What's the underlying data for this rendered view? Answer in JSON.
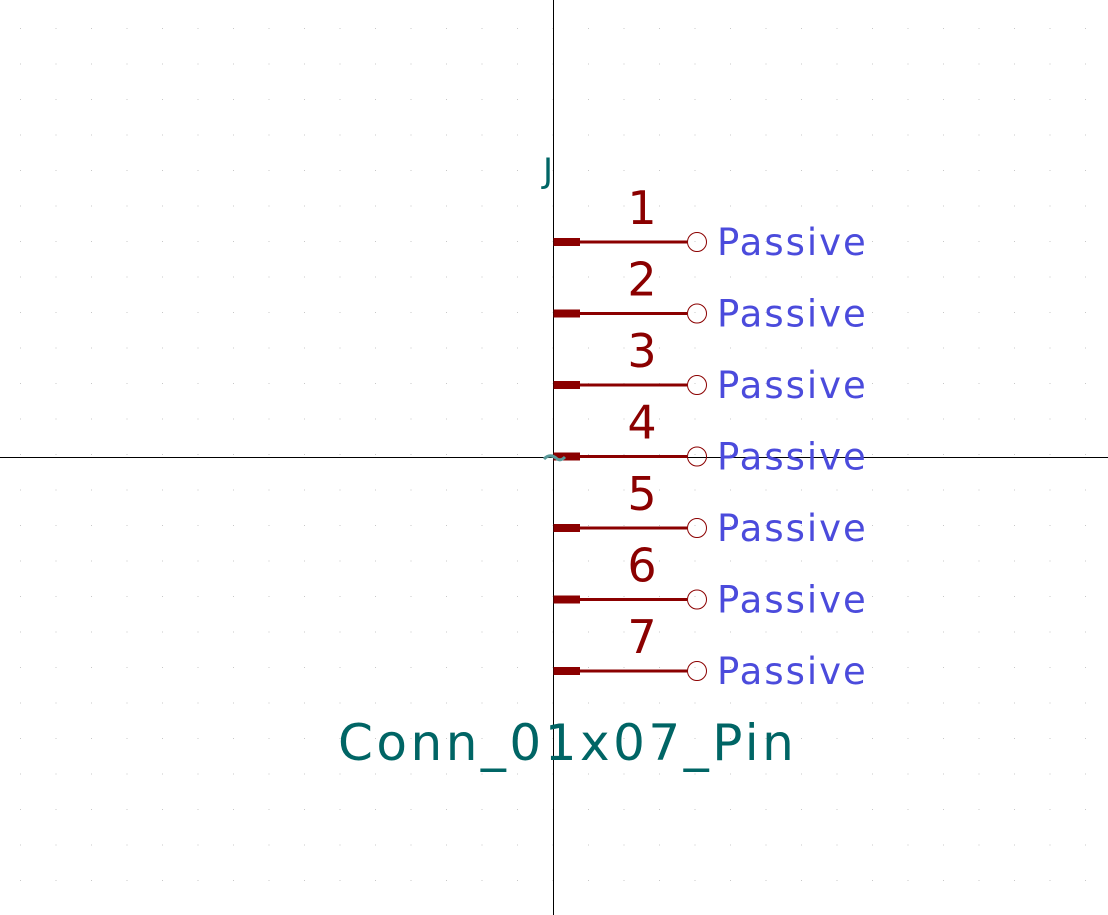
{
  "symbol": {
    "reference": "J",
    "value": "Conn_01x07_Pin"
  },
  "pins": [
    {
      "number": "1",
      "type": "Passive"
    },
    {
      "number": "2",
      "type": "Passive"
    },
    {
      "number": "3",
      "type": "Passive"
    },
    {
      "number": "4",
      "type": "Passive"
    },
    {
      "number": "5",
      "type": "Passive"
    },
    {
      "number": "6",
      "type": "Passive"
    },
    {
      "number": "7",
      "type": "Passive"
    }
  ],
  "colors": {
    "background": "#ffffff",
    "grid": "#c8c8c8",
    "axis": "#000000",
    "pin": "#8b0000",
    "reference_text": "#006565",
    "value_text": "#006565",
    "pin_number": "#8b0000",
    "pin_type": "#4b4bdc",
    "anchor": "#5a9a9a"
  }
}
